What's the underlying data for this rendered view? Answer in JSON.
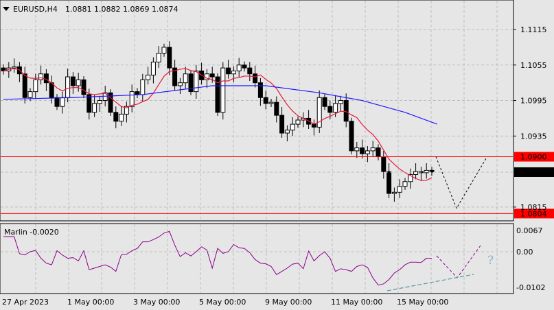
{
  "header": {
    "symbol": "EURUSD,H4",
    "ohlc": "1.0881 1.0882 1.0869 1.0874"
  },
  "price_axis": {
    "ticks": [
      "1.1115",
      "1.1055",
      "1.0995",
      "1.0935",
      "1.0815"
    ],
    "tick_values": [
      1.1115,
      1.1055,
      1.0995,
      1.0935,
      1.0815
    ]
  },
  "levels": {
    "resistance": "1.0900",
    "resistance_value": 1.09,
    "current": "1.0874",
    "current_value": 1.0874,
    "support": "1.0804",
    "support_value": 1.0804
  },
  "indicator": {
    "label": "Marlin -0.0020",
    "ticks": [
      "0.0067",
      "0.00",
      "-0.0102"
    ],
    "question_mark": "?"
  },
  "time_axis": [
    "27 Apr 2023",
    "1 May 00:00",
    "3 May 00:00",
    "5 May 00:00",
    "9 May 00:00",
    "11 May 00:00",
    "15 May 00:00"
  ],
  "colors": {
    "line_fast": "#e8173a",
    "line_slow": "#1a1aff",
    "marlin": "#8b008b",
    "level": "#ff0000",
    "trend": "#5f9ea0"
  },
  "chart_data": {
    "type": "candlestick",
    "closes": [
      1.1045,
      1.105,
      1.1052,
      1.104,
      1.1,
      1.101,
      1.103,
      1.104,
      1.1025,
      1.1,
      1.0985,
      1.1,
      1.1035,
      1.102,
      1.103,
      1.1005,
      1.0975,
      1.099,
      1.0995,
      1.1008,
      1.0975,
      1.096,
      1.0972,
      1.0985,
      1.101,
      1.1005,
      1.103,
      1.1038,
      1.106,
      1.1075,
      1.1085,
      1.105,
      1.102,
      1.1025,
      1.104,
      1.101,
      1.1045,
      1.103,
      1.104,
      1.1035,
      1.0975,
      1.105,
      1.104,
      1.1045,
      1.1055,
      1.105,
      1.104,
      1.1025,
      1.1,
      1.099,
      1.0992,
      1.097,
      1.094,
      1.0945,
      1.0955,
      1.0962,
      1.0965,
      1.0955,
      1.095,
      1.1,
      1.0985,
      1.0975,
      1.099,
      1.0995,
      1.096,
      1.091,
      1.0915,
      1.0905,
      1.091,
      1.0915,
      1.09,
      1.0875,
      1.0838,
      1.084,
      1.085,
      1.0858,
      1.087,
      1.0875,
      1.0873,
      1.0877,
      1.0874
    ],
    "ma_slow": [
      [
        0,
        1.0997
      ],
      [
        13,
        1.1
      ],
      [
        26,
        1.1005
      ],
      [
        39,
        1.102
      ],
      [
        49,
        1.102
      ],
      [
        59,
        1.1008
      ],
      [
        67,
        1.0995
      ],
      [
        75,
        1.0975
      ],
      [
        81,
        1.0955
      ]
    ],
    "marlin": [
      0.0046,
      0.0046,
      0.0046,
      -0.0006,
      -0.001,
      0,
      0.0004,
      -0.002,
      -0.0035,
      -0.004,
      0.0003,
      -0.001,
      -0.002,
      -0.0018,
      -0.0028,
      0.0003,
      -0.0055,
      -0.005,
      -0.0045,
      -0.004,
      -0.0047,
      -0.006,
      -0.001,
      -0.0008,
      0.0003,
      0.001,
      0.003,
      0.003,
      0.0037,
      0.0045,
      0.0057,
      0.0062,
      0.002,
      -0.0015,
      -0.0003,
      -0.0013,
      0,
      0.0015,
      0.0005,
      -0.005,
      0.001,
      -0.0005,
      0,
      0.0022,
      0.0012,
      0.001,
      -0.0003,
      -0.0024,
      -0.0035,
      -0.0037,
      -0.0045,
      -0.007,
      -0.006,
      -0.005,
      -0.0038,
      -0.0035,
      -0.0052,
      0.0002,
      -0.0028,
      -0.0012,
      0,
      -0.002,
      -0.006,
      -0.0052,
      -0.0055,
      -0.006,
      -0.0045,
      -0.004,
      -0.0048,
      -0.008,
      -0.0102,
      -0.0098,
      -0.0085,
      -0.0065,
      -0.0055,
      -0.004,
      -0.0032,
      -0.0032,
      -0.0033,
      -0.002,
      -0.002
    ],
    "forecast_price": [
      1.09,
      1.0813,
      1.0897
    ],
    "ylim": [
      1.0797,
      1.1165
    ],
    "marlin_ylim": [
      -0.0102,
      0.0067
    ]
  }
}
